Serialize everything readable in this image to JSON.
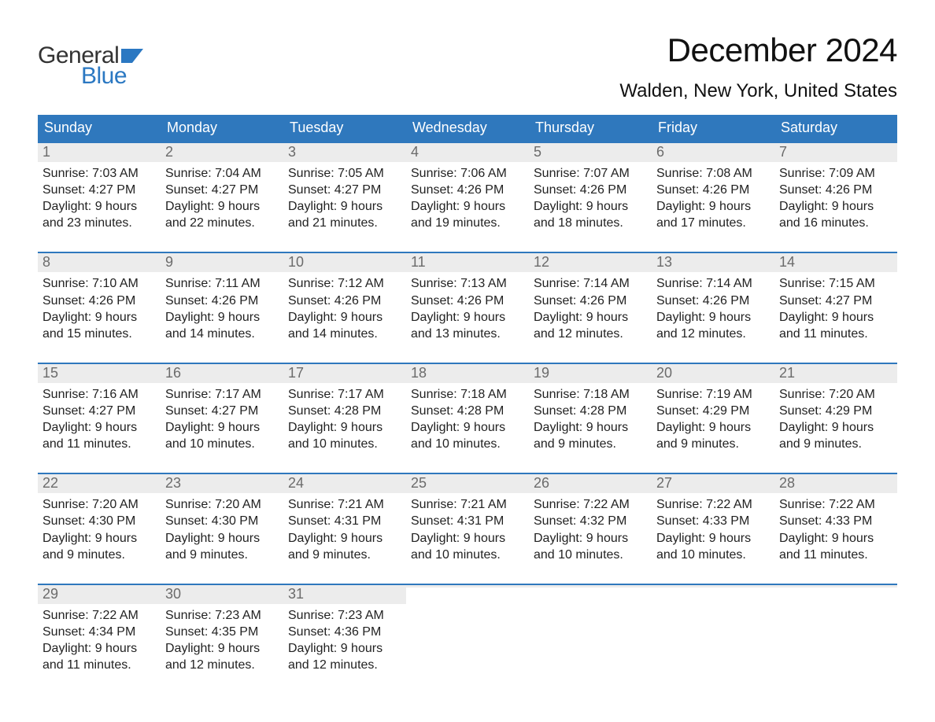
{
  "brand": {
    "part1": "General",
    "part2": "Blue",
    "flag_color": "#2b78c2"
  },
  "title": "December 2024",
  "location": "Walden, New York, United States",
  "colors": {
    "header_bg": "#2f78bd",
    "header_text": "#ffffff",
    "daynum_bg": "#ececec",
    "daynum_text": "#6b6b6b",
    "week_border": "#2f78bd",
    "body_text": "#222222",
    "page_bg": "#ffffff"
  },
  "typography": {
    "title_fontsize": 42,
    "location_fontsize": 24,
    "dow_fontsize": 18,
    "daynum_fontsize": 18,
    "body_fontsize": 16,
    "font_family": "Arial"
  },
  "days_of_week": [
    "Sunday",
    "Monday",
    "Tuesday",
    "Wednesday",
    "Thursday",
    "Friday",
    "Saturday"
  ],
  "labels": {
    "sunrise": "Sunrise:",
    "sunset": "Sunset:",
    "daylight": "Daylight:"
  },
  "weeks": [
    [
      {
        "n": "1",
        "sunrise": "7:03 AM",
        "sunset": "4:27 PM",
        "day_l1": "9 hours",
        "day_l2": "and 23 minutes."
      },
      {
        "n": "2",
        "sunrise": "7:04 AM",
        "sunset": "4:27 PM",
        "day_l1": "9 hours",
        "day_l2": "and 22 minutes."
      },
      {
        "n": "3",
        "sunrise": "7:05 AM",
        "sunset": "4:27 PM",
        "day_l1": "9 hours",
        "day_l2": "and 21 minutes."
      },
      {
        "n": "4",
        "sunrise": "7:06 AM",
        "sunset": "4:26 PM",
        "day_l1": "9 hours",
        "day_l2": "and 19 minutes."
      },
      {
        "n": "5",
        "sunrise": "7:07 AM",
        "sunset": "4:26 PM",
        "day_l1": "9 hours",
        "day_l2": "and 18 minutes."
      },
      {
        "n": "6",
        "sunrise": "7:08 AM",
        "sunset": "4:26 PM",
        "day_l1": "9 hours",
        "day_l2": "and 17 minutes."
      },
      {
        "n": "7",
        "sunrise": "7:09 AM",
        "sunset": "4:26 PM",
        "day_l1": "9 hours",
        "day_l2": "and 16 minutes."
      }
    ],
    [
      {
        "n": "8",
        "sunrise": "7:10 AM",
        "sunset": "4:26 PM",
        "day_l1": "9 hours",
        "day_l2": "and 15 minutes."
      },
      {
        "n": "9",
        "sunrise": "7:11 AM",
        "sunset": "4:26 PM",
        "day_l1": "9 hours",
        "day_l2": "and 14 minutes."
      },
      {
        "n": "10",
        "sunrise": "7:12 AM",
        "sunset": "4:26 PM",
        "day_l1": "9 hours",
        "day_l2": "and 14 minutes."
      },
      {
        "n": "11",
        "sunrise": "7:13 AM",
        "sunset": "4:26 PM",
        "day_l1": "9 hours",
        "day_l2": "and 13 minutes."
      },
      {
        "n": "12",
        "sunrise": "7:14 AM",
        "sunset": "4:26 PM",
        "day_l1": "9 hours",
        "day_l2": "and 12 minutes."
      },
      {
        "n": "13",
        "sunrise": "7:14 AM",
        "sunset": "4:26 PM",
        "day_l1": "9 hours",
        "day_l2": "and 12 minutes."
      },
      {
        "n": "14",
        "sunrise": "7:15 AM",
        "sunset": "4:27 PM",
        "day_l1": "9 hours",
        "day_l2": "and 11 minutes."
      }
    ],
    [
      {
        "n": "15",
        "sunrise": "7:16 AM",
        "sunset": "4:27 PM",
        "day_l1": "9 hours",
        "day_l2": "and 11 minutes."
      },
      {
        "n": "16",
        "sunrise": "7:17 AM",
        "sunset": "4:27 PM",
        "day_l1": "9 hours",
        "day_l2": "and 10 minutes."
      },
      {
        "n": "17",
        "sunrise": "7:17 AM",
        "sunset": "4:28 PM",
        "day_l1": "9 hours",
        "day_l2": "and 10 minutes."
      },
      {
        "n": "18",
        "sunrise": "7:18 AM",
        "sunset": "4:28 PM",
        "day_l1": "9 hours",
        "day_l2": "and 10 minutes."
      },
      {
        "n": "19",
        "sunrise": "7:18 AM",
        "sunset": "4:28 PM",
        "day_l1": "9 hours",
        "day_l2": "and 9 minutes."
      },
      {
        "n": "20",
        "sunrise": "7:19 AM",
        "sunset": "4:29 PM",
        "day_l1": "9 hours",
        "day_l2": "and 9 minutes."
      },
      {
        "n": "21",
        "sunrise": "7:20 AM",
        "sunset": "4:29 PM",
        "day_l1": "9 hours",
        "day_l2": "and 9 minutes."
      }
    ],
    [
      {
        "n": "22",
        "sunrise": "7:20 AM",
        "sunset": "4:30 PM",
        "day_l1": "9 hours",
        "day_l2": "and 9 minutes."
      },
      {
        "n": "23",
        "sunrise": "7:20 AM",
        "sunset": "4:30 PM",
        "day_l1": "9 hours",
        "day_l2": "and 9 minutes."
      },
      {
        "n": "24",
        "sunrise": "7:21 AM",
        "sunset": "4:31 PM",
        "day_l1": "9 hours",
        "day_l2": "and 9 minutes."
      },
      {
        "n": "25",
        "sunrise": "7:21 AM",
        "sunset": "4:31 PM",
        "day_l1": "9 hours",
        "day_l2": "and 10 minutes."
      },
      {
        "n": "26",
        "sunrise": "7:22 AM",
        "sunset": "4:32 PM",
        "day_l1": "9 hours",
        "day_l2": "and 10 minutes."
      },
      {
        "n": "27",
        "sunrise": "7:22 AM",
        "sunset": "4:33 PM",
        "day_l1": "9 hours",
        "day_l2": "and 10 minutes."
      },
      {
        "n": "28",
        "sunrise": "7:22 AM",
        "sunset": "4:33 PM",
        "day_l1": "9 hours",
        "day_l2": "and 11 minutes."
      }
    ],
    [
      {
        "n": "29",
        "sunrise": "7:22 AM",
        "sunset": "4:34 PM",
        "day_l1": "9 hours",
        "day_l2": "and 11 minutes."
      },
      {
        "n": "30",
        "sunrise": "7:23 AM",
        "sunset": "4:35 PM",
        "day_l1": "9 hours",
        "day_l2": "and 12 minutes."
      },
      {
        "n": "31",
        "sunrise": "7:23 AM",
        "sunset": "4:36 PM",
        "day_l1": "9 hours",
        "day_l2": "and 12 minutes."
      },
      {
        "empty": true
      },
      {
        "empty": true
      },
      {
        "empty": true
      },
      {
        "empty": true
      }
    ]
  ]
}
